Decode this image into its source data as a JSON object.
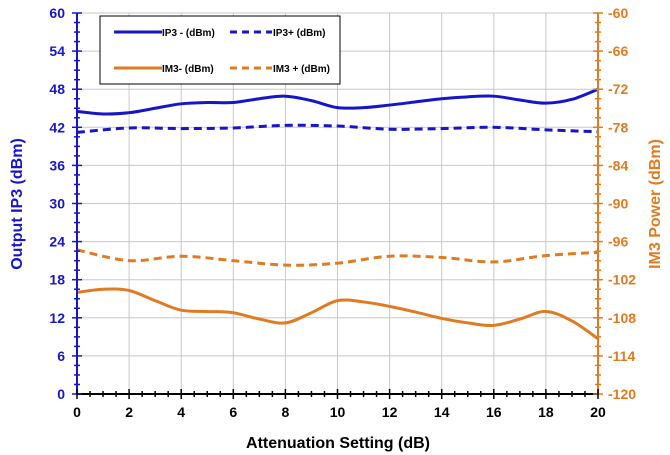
{
  "chart_data": {
    "type": "line",
    "xlabel": "Attenuation Setting (dB)",
    "ylabel_left": "Output IP3 (dBm)",
    "ylabel_right": "IM3 Power (dBm)",
    "xlim": [
      0,
      20
    ],
    "ylim_left": [
      0,
      60
    ],
    "ylim_right": [
      -120,
      -60
    ],
    "x_ticks": [
      "0",
      "2",
      "4",
      "6",
      "8",
      "10",
      "12",
      "14",
      "16",
      "18",
      "20"
    ],
    "y_left_ticks": [
      "0",
      "6",
      "12",
      "18",
      "24",
      "30",
      "36",
      "42",
      "48",
      "54",
      "60"
    ],
    "y_right_ticks": [
      "-120",
      "-114",
      "-108",
      "-102",
      "-96",
      "-90",
      "-84",
      "-78",
      "-72",
      "-66",
      "-60"
    ],
    "grid": true,
    "legend_position": "top-left",
    "series": [
      {
        "name": "IP3 - (dBm)",
        "axis": "left",
        "color": "#1616c8",
        "dash": "solid",
        "x": [
          0,
          1,
          2,
          3,
          4,
          5,
          6,
          7,
          8,
          9,
          10,
          11,
          12,
          13,
          14,
          15,
          16,
          17,
          18,
          19,
          20
        ],
        "y": [
          44.5,
          44.1,
          44.3,
          45.0,
          45.7,
          45.9,
          45.9,
          46.5,
          46.9,
          46.2,
          45.1,
          45.1,
          45.5,
          46.0,
          46.5,
          46.8,
          46.9,
          46.3,
          45.8,
          46.4,
          48.0
        ]
      },
      {
        "name": "IP3+ (dBm)",
        "axis": "left",
        "color": "#1616c8",
        "dash": "dashed",
        "x": [
          0,
          2,
          4,
          6,
          8,
          10,
          12,
          14,
          16,
          18,
          20
        ],
        "y": [
          41.2,
          41.9,
          41.8,
          41.9,
          42.3,
          42.2,
          41.7,
          41.8,
          42.0,
          41.6,
          41.3
        ]
      },
      {
        "name": "IM3- (dBm)",
        "axis": "right",
        "color": "#e07b22",
        "dash": "solid",
        "x": [
          0,
          1,
          2,
          3,
          4,
          5,
          6,
          7,
          8,
          9,
          10,
          11,
          12,
          13,
          14,
          15,
          16,
          17,
          18,
          19,
          20
        ],
        "y": [
          -104.0,
          -103.5,
          -103.7,
          -105.3,
          -106.8,
          -107.0,
          -107.2,
          -108.2,
          -108.8,
          -107.2,
          -105.3,
          -105.5,
          -106.2,
          -107.1,
          -108.1,
          -108.8,
          -109.2,
          -108.2,
          -107.0,
          -108.5,
          -111.3
        ]
      },
      {
        "name": "IM3 + (dBm)",
        "axis": "right",
        "color": "#e07b22",
        "dash": "dashed",
        "x": [
          0,
          2,
          4,
          6,
          8,
          10,
          12,
          14,
          16,
          18,
          20
        ],
        "y": [
          -97.3,
          -99.0,
          -98.3,
          -99.0,
          -99.7,
          -99.4,
          -98.3,
          -98.5,
          -99.2,
          -98.2,
          -97.7
        ]
      }
    ]
  }
}
